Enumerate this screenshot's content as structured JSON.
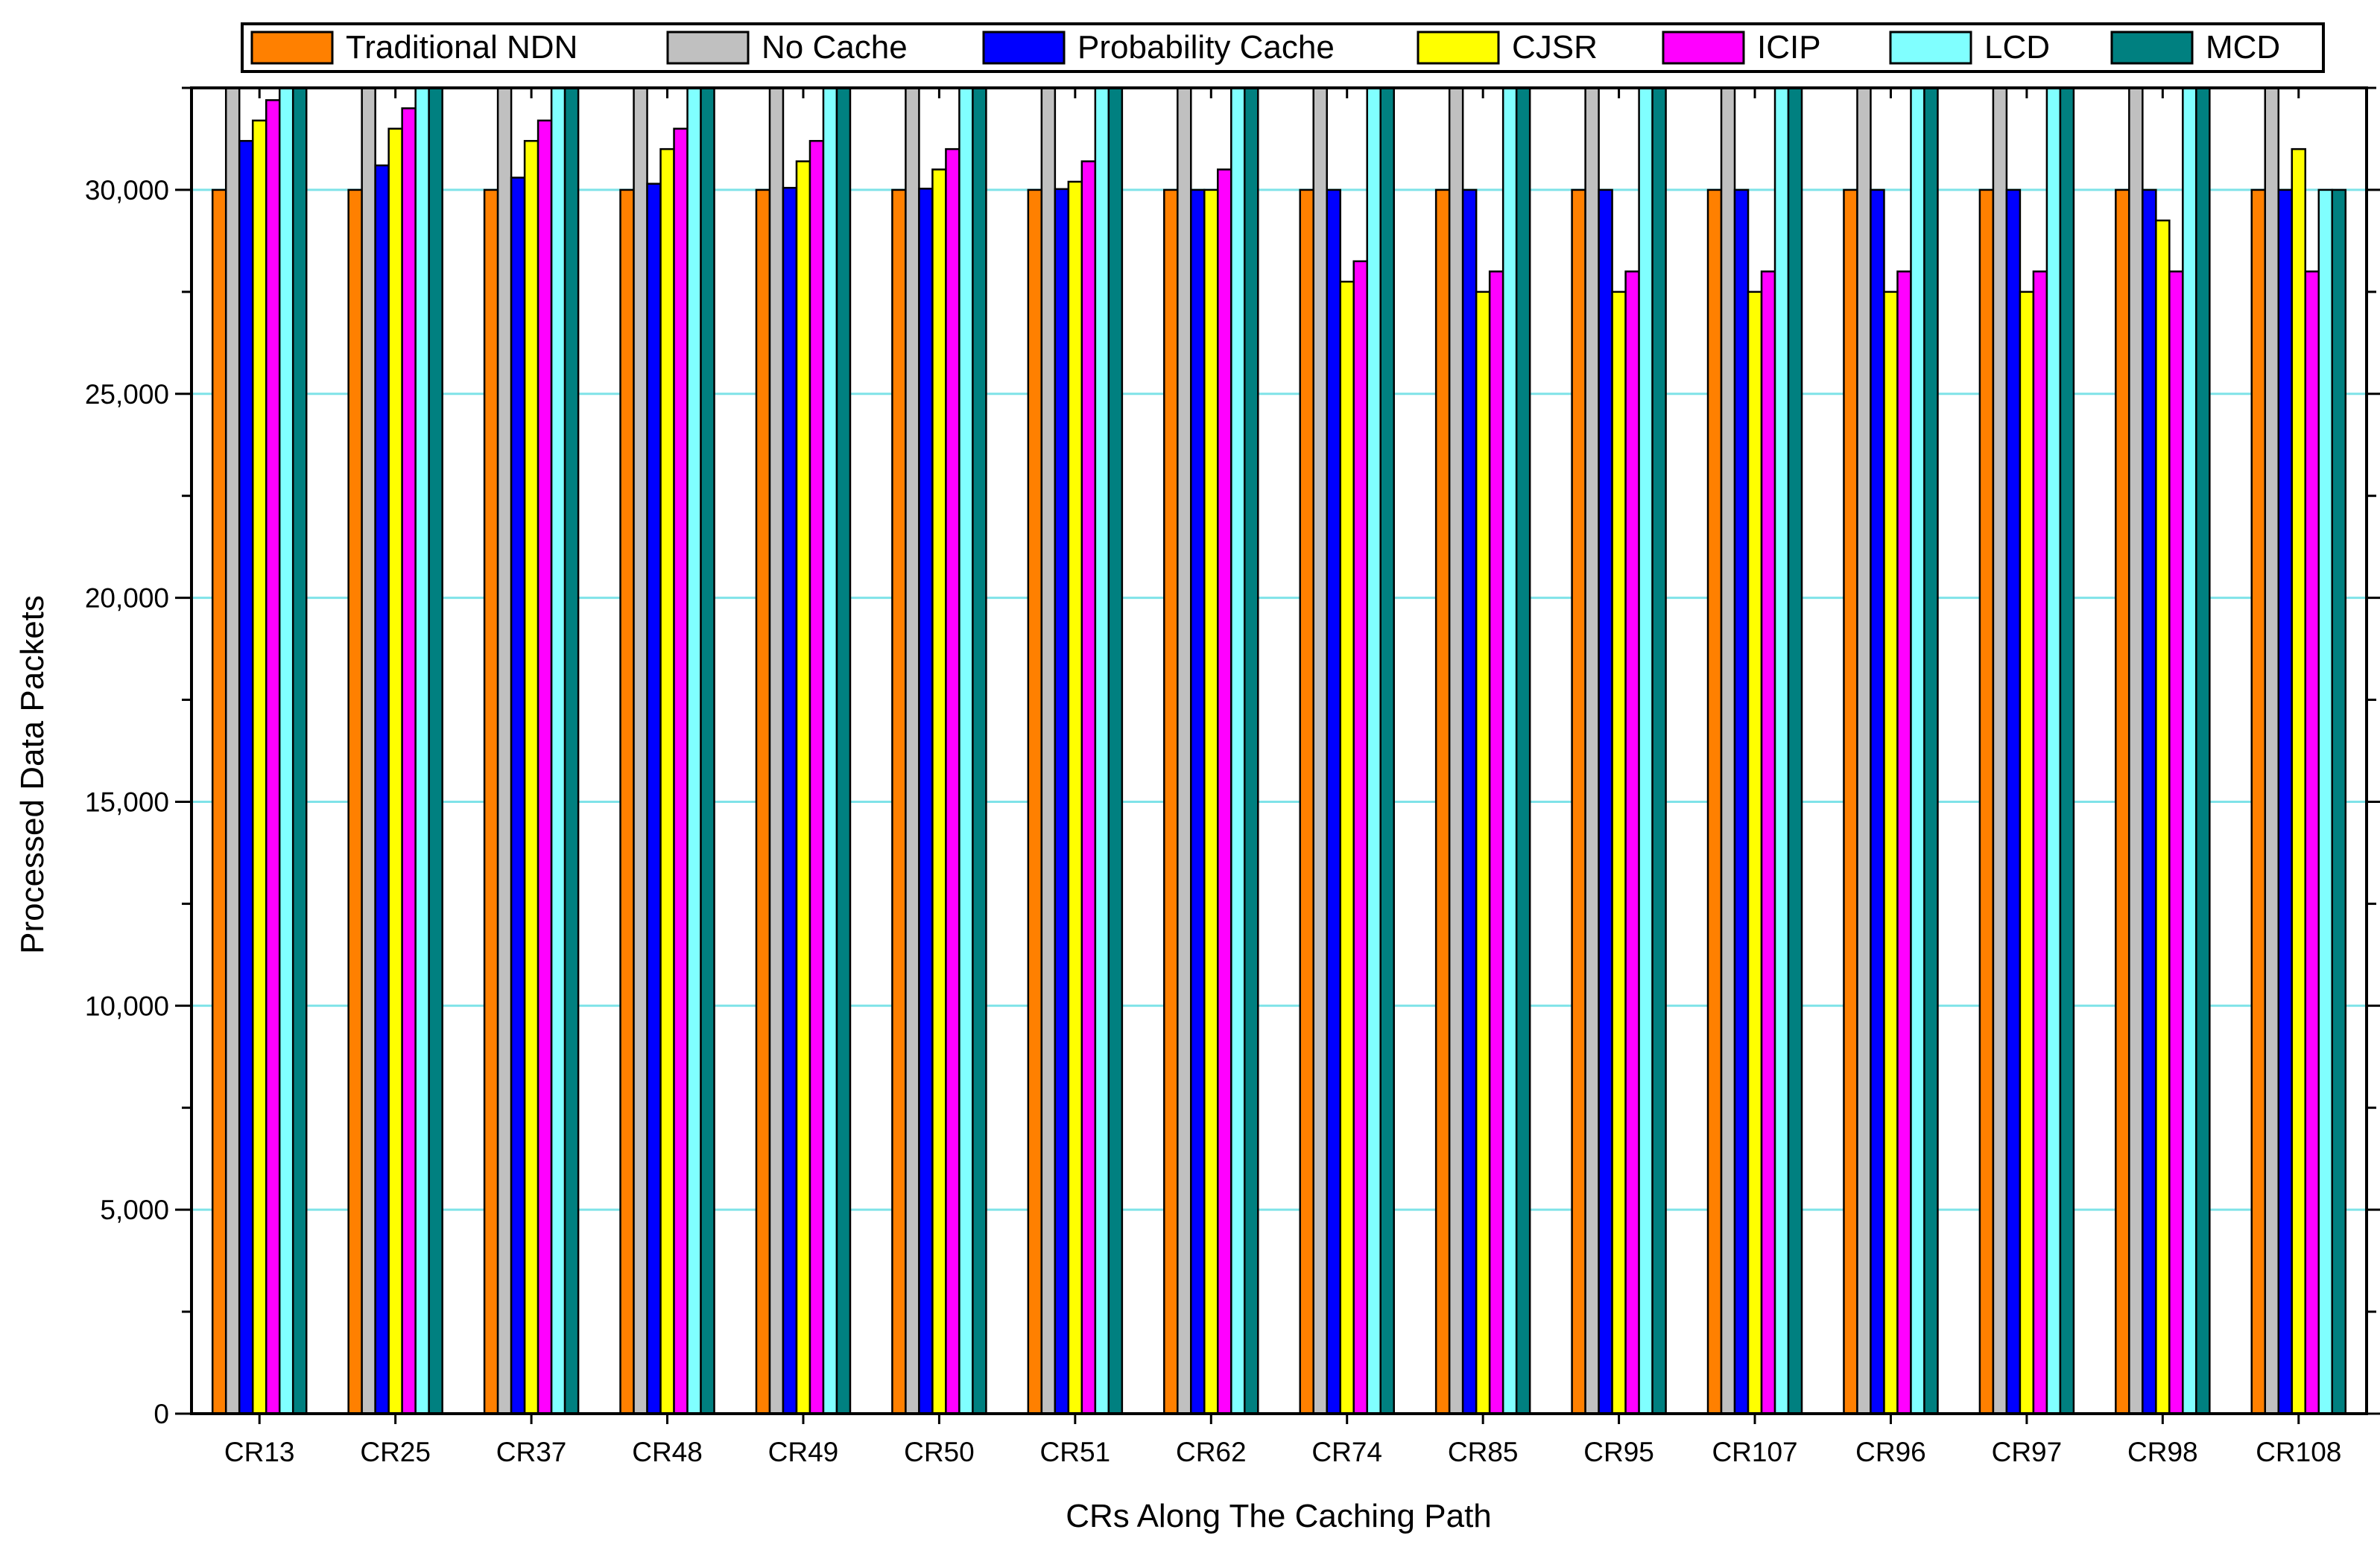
{
  "chart_data": {
    "type": "bar",
    "title": "",
    "xlabel": "CRs Along The Caching Path",
    "ylabel": "Processed Data Packets",
    "ylim": [
      0,
      32500
    ],
    "yticks": [
      0,
      5000,
      10000,
      15000,
      20000,
      25000,
      30000
    ],
    "ytick_labels": [
      "0",
      "5,000",
      "10,000",
      "15,000",
      "20,000",
      "25,000",
      "30,000"
    ],
    "grid": "horizontal",
    "grid_color": "#7fe3e8",
    "legend_position": "top",
    "categories": [
      "CR13",
      "CR25",
      "CR37",
      "CR48",
      "CR49",
      "CR50",
      "CR51",
      "CR62",
      "CR74",
      "CR85",
      "CR95",
      "CR107",
      "CR96",
      "CR97",
      "CR98",
      "CR108"
    ],
    "series": [
      {
        "name": "Traditional NDN",
        "color": "#ff8000",
        "values": [
          30000,
          30000,
          30000,
          30000,
          30000,
          30000,
          30000,
          30000,
          30000,
          30000,
          30000,
          30000,
          30000,
          30000,
          30000,
          30000
        ]
      },
      {
        "name": "No Cache",
        "color": "#c0c0c0",
        "values": [
          32500,
          32500,
          32500,
          32500,
          32500,
          32500,
          32500,
          32500,
          32500,
          32500,
          32500,
          32500,
          32500,
          32500,
          32500,
          32500
        ]
      },
      {
        "name": "Probability Cache",
        "color": "#0000ff",
        "values": [
          31200,
          30600,
          30300,
          30150,
          30050,
          30030,
          30020,
          30000,
          30000,
          30000,
          30000,
          30000,
          30000,
          30000,
          30000,
          30000
        ]
      },
      {
        "name": "CJSR",
        "color": "#ffff00",
        "values": [
          31700,
          31500,
          31200,
          31000,
          30700,
          30500,
          30200,
          30000,
          27750,
          27500,
          27500,
          27500,
          27500,
          27500,
          29250,
          31000
        ]
      },
      {
        "name": "ICIP",
        "color": "#ff00ff",
        "values": [
          32200,
          32000,
          31700,
          31500,
          31200,
          31000,
          30700,
          30500,
          28250,
          28000,
          28000,
          28000,
          28000,
          28000,
          28000,
          28000
        ]
      },
      {
        "name": "LCD",
        "color": "#80ffff",
        "values": [
          32500,
          32500,
          32500,
          32500,
          32500,
          32500,
          32500,
          32500,
          32500,
          32500,
          32500,
          32500,
          32500,
          32500,
          32500,
          30000
        ]
      },
      {
        "name": "MCD",
        "color": "#008080",
        "values": [
          32500,
          32500,
          32500,
          32500,
          32500,
          32500,
          32500,
          32500,
          32500,
          32500,
          32500,
          32500,
          32500,
          32500,
          32500,
          30000
        ]
      }
    ]
  }
}
